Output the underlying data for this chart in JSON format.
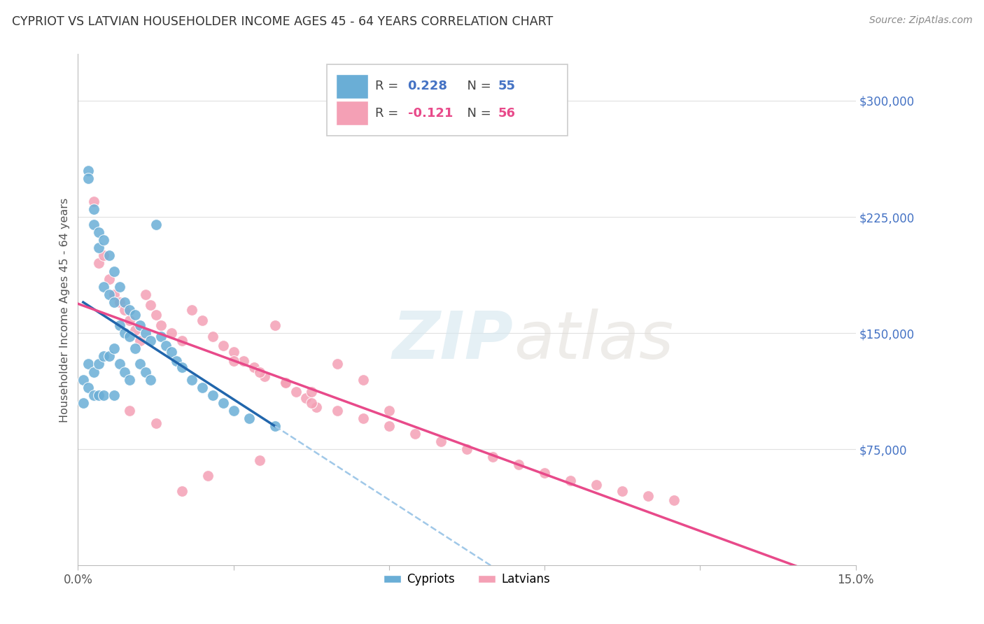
{
  "title": "CYPRIOT VS LATVIAN HOUSEHOLDER INCOME AGES 45 - 64 YEARS CORRELATION CHART",
  "source": "Source: ZipAtlas.com",
  "ylabel": "Householder Income Ages 45 - 64 years",
  "xlim": [
    0.0,
    0.15
  ],
  "ylim": [
    0,
    330000
  ],
  "ytick_values": [
    75000,
    150000,
    225000,
    300000
  ],
  "ytick_labels": [
    "$75,000",
    "$150,000",
    "$225,000",
    "$300,000"
  ],
  "cypriot_color": "#6aaed6",
  "latvian_color": "#f4a0b5",
  "cypriot_line_color": "#2166ac",
  "latvian_line_color": "#e84a8a",
  "cypriot_dashed_color": "#a0c8e8",
  "legend_R_cypriot": "0.228",
  "legend_N_cypriot": "55",
  "legend_R_latvian": "-0.121",
  "legend_N_latvian": "56",
  "watermark_ZIP": "ZIP",
  "watermark_atlas": "atlas",
  "background_color": "#ffffff",
  "grid_color": "#e0e0e0",
  "cypriot_x": [
    0.001,
    0.001,
    0.002,
    0.002,
    0.002,
    0.002,
    0.003,
    0.003,
    0.003,
    0.003,
    0.004,
    0.004,
    0.004,
    0.004,
    0.005,
    0.005,
    0.005,
    0.005,
    0.006,
    0.006,
    0.006,
    0.007,
    0.007,
    0.007,
    0.007,
    0.008,
    0.008,
    0.008,
    0.009,
    0.009,
    0.009,
    0.01,
    0.01,
    0.01,
    0.011,
    0.011,
    0.012,
    0.012,
    0.013,
    0.013,
    0.014,
    0.014,
    0.015,
    0.016,
    0.017,
    0.018,
    0.019,
    0.02,
    0.022,
    0.024,
    0.026,
    0.028,
    0.03,
    0.033,
    0.038
  ],
  "cypriot_y": [
    120000,
    105000,
    255000,
    250000,
    130000,
    115000,
    230000,
    220000,
    125000,
    110000,
    215000,
    205000,
    130000,
    110000,
    210000,
    180000,
    135000,
    110000,
    200000,
    175000,
    135000,
    190000,
    170000,
    140000,
    110000,
    180000,
    155000,
    130000,
    170000,
    150000,
    125000,
    165000,
    148000,
    120000,
    162000,
    140000,
    155000,
    130000,
    150000,
    125000,
    145000,
    120000,
    220000,
    148000,
    142000,
    138000,
    132000,
    128000,
    120000,
    115000,
    110000,
    105000,
    100000,
    95000,
    90000
  ],
  "latvian_x": [
    0.003,
    0.004,
    0.005,
    0.006,
    0.007,
    0.008,
    0.009,
    0.01,
    0.011,
    0.012,
    0.013,
    0.014,
    0.015,
    0.016,
    0.018,
    0.02,
    0.022,
    0.024,
    0.026,
    0.028,
    0.03,
    0.032,
    0.034,
    0.036,
    0.038,
    0.04,
    0.042,
    0.044,
    0.046,
    0.05,
    0.055,
    0.06,
    0.03,
    0.035,
    0.04,
    0.045,
    0.05,
    0.055,
    0.06,
    0.065,
    0.07,
    0.075,
    0.08,
    0.085,
    0.09,
    0.095,
    0.1,
    0.105,
    0.11,
    0.115,
    0.02,
    0.025,
    0.01,
    0.015,
    0.035,
    0.045
  ],
  "latvian_y": [
    235000,
    195000,
    200000,
    185000,
    175000,
    170000,
    165000,
    158000,
    152000,
    145000,
    175000,
    168000,
    162000,
    155000,
    150000,
    145000,
    165000,
    158000,
    148000,
    142000,
    138000,
    132000,
    128000,
    122000,
    155000,
    118000,
    112000,
    108000,
    102000,
    130000,
    120000,
    100000,
    132000,
    125000,
    118000,
    112000,
    100000,
    95000,
    90000,
    85000,
    80000,
    75000,
    70000,
    65000,
    60000,
    55000,
    52000,
    48000,
    45000,
    42000,
    48000,
    58000,
    100000,
    92000,
    68000,
    105000
  ]
}
